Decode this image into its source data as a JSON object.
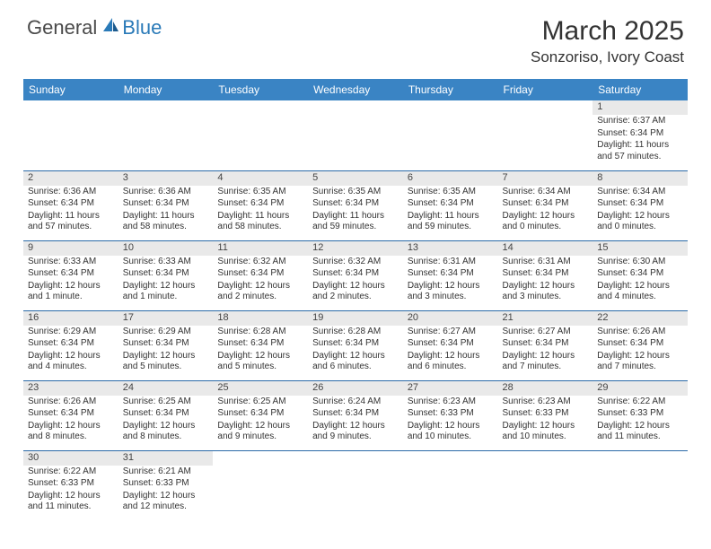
{
  "brand": {
    "general": "General",
    "blue": "Blue"
  },
  "title": "March 2025",
  "location": "Sonzoriso, Ivory Coast",
  "colors": {
    "header_bg": "#3a84c4",
    "header_text": "#ffffff",
    "row_divider": "#2a6aa8",
    "daynum_bg": "#e9e9e9",
    "body_text": "#333333",
    "logo_gray": "#4a4a4a",
    "logo_blue": "#2a7ab8"
  },
  "day_headers": [
    "Sunday",
    "Monday",
    "Tuesday",
    "Wednesday",
    "Thursday",
    "Friday",
    "Saturday"
  ],
  "weeks": [
    [
      null,
      null,
      null,
      null,
      null,
      null,
      {
        "n": "1",
        "sr": "Sunrise: 6:37 AM",
        "ss": "Sunset: 6:34 PM",
        "dl": "Daylight: 11 hours and 57 minutes."
      }
    ],
    [
      {
        "n": "2",
        "sr": "Sunrise: 6:36 AM",
        "ss": "Sunset: 6:34 PM",
        "dl": "Daylight: 11 hours and 57 minutes."
      },
      {
        "n": "3",
        "sr": "Sunrise: 6:36 AM",
        "ss": "Sunset: 6:34 PM",
        "dl": "Daylight: 11 hours and 58 minutes."
      },
      {
        "n": "4",
        "sr": "Sunrise: 6:35 AM",
        "ss": "Sunset: 6:34 PM",
        "dl": "Daylight: 11 hours and 58 minutes."
      },
      {
        "n": "5",
        "sr": "Sunrise: 6:35 AM",
        "ss": "Sunset: 6:34 PM",
        "dl": "Daylight: 11 hours and 59 minutes."
      },
      {
        "n": "6",
        "sr": "Sunrise: 6:35 AM",
        "ss": "Sunset: 6:34 PM",
        "dl": "Daylight: 11 hours and 59 minutes."
      },
      {
        "n": "7",
        "sr": "Sunrise: 6:34 AM",
        "ss": "Sunset: 6:34 PM",
        "dl": "Daylight: 12 hours and 0 minutes."
      },
      {
        "n": "8",
        "sr": "Sunrise: 6:34 AM",
        "ss": "Sunset: 6:34 PM",
        "dl": "Daylight: 12 hours and 0 minutes."
      }
    ],
    [
      {
        "n": "9",
        "sr": "Sunrise: 6:33 AM",
        "ss": "Sunset: 6:34 PM",
        "dl": "Daylight: 12 hours and 1 minute."
      },
      {
        "n": "10",
        "sr": "Sunrise: 6:33 AM",
        "ss": "Sunset: 6:34 PM",
        "dl": "Daylight: 12 hours and 1 minute."
      },
      {
        "n": "11",
        "sr": "Sunrise: 6:32 AM",
        "ss": "Sunset: 6:34 PM",
        "dl": "Daylight: 12 hours and 2 minutes."
      },
      {
        "n": "12",
        "sr": "Sunrise: 6:32 AM",
        "ss": "Sunset: 6:34 PM",
        "dl": "Daylight: 12 hours and 2 minutes."
      },
      {
        "n": "13",
        "sr": "Sunrise: 6:31 AM",
        "ss": "Sunset: 6:34 PM",
        "dl": "Daylight: 12 hours and 3 minutes."
      },
      {
        "n": "14",
        "sr": "Sunrise: 6:31 AM",
        "ss": "Sunset: 6:34 PM",
        "dl": "Daylight: 12 hours and 3 minutes."
      },
      {
        "n": "15",
        "sr": "Sunrise: 6:30 AM",
        "ss": "Sunset: 6:34 PM",
        "dl": "Daylight: 12 hours and 4 minutes."
      }
    ],
    [
      {
        "n": "16",
        "sr": "Sunrise: 6:29 AM",
        "ss": "Sunset: 6:34 PM",
        "dl": "Daylight: 12 hours and 4 minutes."
      },
      {
        "n": "17",
        "sr": "Sunrise: 6:29 AM",
        "ss": "Sunset: 6:34 PM",
        "dl": "Daylight: 12 hours and 5 minutes."
      },
      {
        "n": "18",
        "sr": "Sunrise: 6:28 AM",
        "ss": "Sunset: 6:34 PM",
        "dl": "Daylight: 12 hours and 5 minutes."
      },
      {
        "n": "19",
        "sr": "Sunrise: 6:28 AM",
        "ss": "Sunset: 6:34 PM",
        "dl": "Daylight: 12 hours and 6 minutes."
      },
      {
        "n": "20",
        "sr": "Sunrise: 6:27 AM",
        "ss": "Sunset: 6:34 PM",
        "dl": "Daylight: 12 hours and 6 minutes."
      },
      {
        "n": "21",
        "sr": "Sunrise: 6:27 AM",
        "ss": "Sunset: 6:34 PM",
        "dl": "Daylight: 12 hours and 7 minutes."
      },
      {
        "n": "22",
        "sr": "Sunrise: 6:26 AM",
        "ss": "Sunset: 6:34 PM",
        "dl": "Daylight: 12 hours and 7 minutes."
      }
    ],
    [
      {
        "n": "23",
        "sr": "Sunrise: 6:26 AM",
        "ss": "Sunset: 6:34 PM",
        "dl": "Daylight: 12 hours and 8 minutes."
      },
      {
        "n": "24",
        "sr": "Sunrise: 6:25 AM",
        "ss": "Sunset: 6:34 PM",
        "dl": "Daylight: 12 hours and 8 minutes."
      },
      {
        "n": "25",
        "sr": "Sunrise: 6:25 AM",
        "ss": "Sunset: 6:34 PM",
        "dl": "Daylight: 12 hours and 9 minutes."
      },
      {
        "n": "26",
        "sr": "Sunrise: 6:24 AM",
        "ss": "Sunset: 6:34 PM",
        "dl": "Daylight: 12 hours and 9 minutes."
      },
      {
        "n": "27",
        "sr": "Sunrise: 6:23 AM",
        "ss": "Sunset: 6:33 PM",
        "dl": "Daylight: 12 hours and 10 minutes."
      },
      {
        "n": "28",
        "sr": "Sunrise: 6:23 AM",
        "ss": "Sunset: 6:33 PM",
        "dl": "Daylight: 12 hours and 10 minutes."
      },
      {
        "n": "29",
        "sr": "Sunrise: 6:22 AM",
        "ss": "Sunset: 6:33 PM",
        "dl": "Daylight: 12 hours and 11 minutes."
      }
    ],
    [
      {
        "n": "30",
        "sr": "Sunrise: 6:22 AM",
        "ss": "Sunset: 6:33 PM",
        "dl": "Daylight: 12 hours and 11 minutes."
      },
      {
        "n": "31",
        "sr": "Sunrise: 6:21 AM",
        "ss": "Sunset: 6:33 PM",
        "dl": "Daylight: 12 hours and 12 minutes."
      },
      null,
      null,
      null,
      null,
      null
    ]
  ]
}
